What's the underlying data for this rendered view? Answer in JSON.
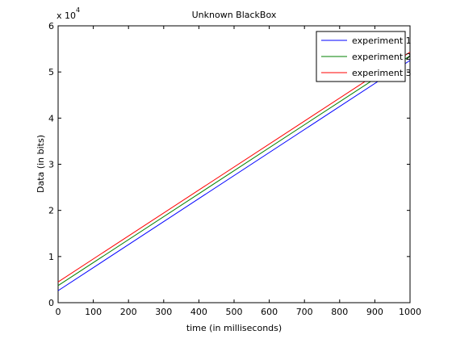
{
  "chart_data": {
    "type": "line",
    "title": "Unknown BlackBox",
    "xlabel": "time (in milliseconds)",
    "ylabel": "Data (in bits)",
    "y_multiplier": "x 10",
    "y_multiplier_exponent": "4",
    "xlim": [
      0,
      1000
    ],
    "ylim": [
      0,
      6
    ],
    "x_ticks": [
      0,
      100,
      200,
      300,
      400,
      500,
      600,
      700,
      800,
      900,
      1000
    ],
    "y_ticks": [
      0,
      1,
      2,
      3,
      4,
      5,
      6
    ],
    "grid": false,
    "legend_position": "top-right",
    "series": [
      {
        "name": "experiment 1",
        "color": "#0000ff",
        "x": [
          0,
          1000
        ],
        "y": [
          0.26,
          5.25
        ]
      },
      {
        "name": "experiment 2",
        "color": "#008000",
        "x": [
          0,
          1000
        ],
        "y": [
          0.37,
          5.35
        ]
      },
      {
        "name": "experiment 3",
        "color": "#ff0000",
        "x": [
          0,
          1000
        ],
        "y": [
          0.45,
          5.43
        ]
      }
    ]
  }
}
